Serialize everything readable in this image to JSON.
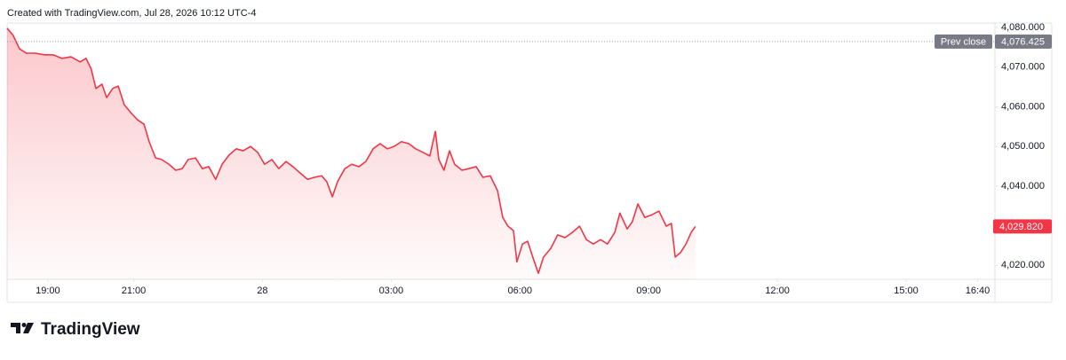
{
  "chart_data": {
    "type": "area",
    "title": "Created with TradingView.com, Jul 28, 2026 10:12 UTC-4",
    "x": [
      18.05,
      18.19,
      18.34,
      18.5,
      18.71,
      18.92,
      19.12,
      19.33,
      19.54,
      19.75,
      19.89,
      20.01,
      20.12,
      20.26,
      20.37,
      20.51,
      20.64,
      20.78,
      20.95,
      21.09,
      21.24,
      21.36,
      21.51,
      21.65,
      21.82,
      21.98,
      22.13,
      22.27,
      22.44,
      22.6,
      22.75,
      22.91,
      23.06,
      23.22,
      23.39,
      23.55,
      23.72,
      23.89,
      24.05,
      24.22,
      24.38,
      24.55,
      24.71,
      24.88,
      25.05,
      25.21,
      25.38,
      25.5,
      25.63,
      25.75,
      25.92,
      26.08,
      26.25,
      26.41,
      26.58,
      26.74,
      26.91,
      27.07,
      27.24,
      27.41,
      27.57,
      27.74,
      27.9,
      28.03,
      28.11,
      28.23,
      28.36,
      28.48,
      28.65,
      28.81,
      28.98,
      29.14,
      29.31,
      29.48,
      29.6,
      29.72,
      29.85,
      29.93,
      30.06,
      30.18,
      30.3,
      30.43,
      30.55,
      30.72,
      30.88,
      31.05,
      31.22,
      31.39,
      31.55,
      31.71,
      31.88,
      32.04,
      32.21,
      32.33,
      32.5,
      32.62,
      32.75,
      32.91,
      33.08,
      33.24,
      33.41,
      33.53,
      33.62,
      33.74,
      33.87,
      33.99,
      34.09
    ],
    "values": [
      4079.8,
      4078.0,
      4074.6,
      4073.5,
      4073.5,
      4073.1,
      4073.1,
      4072.2,
      4072.6,
      4071.3,
      4072.2,
      4069.5,
      4064.6,
      4065.7,
      4062.3,
      4064.6,
      4065.2,
      4060.5,
      4058.3,
      4056.7,
      4055.6,
      4051.2,
      4047.1,
      4046.7,
      4045.5,
      4044.0,
      4044.4,
      4046.7,
      4047.1,
      4044.4,
      4044.9,
      4041.7,
      4045.5,
      4047.8,
      4049.4,
      4048.9,
      4050.0,
      4048.5,
      4045.5,
      4046.7,
      4044.4,
      4046.2,
      4044.9,
      4043.3,
      4041.7,
      4042.2,
      4042.6,
      4041.1,
      4037.3,
      4041.1,
      4044.4,
      4045.5,
      4044.9,
      4046.2,
      4049.4,
      4050.7,
      4049.4,
      4050.0,
      4051.2,
      4050.7,
      4049.4,
      4048.5,
      4047.6,
      4053.8,
      4046.7,
      4044.0,
      4048.9,
      4045.5,
      4044.0,
      4044.4,
      4044.9,
      4042.2,
      4042.6,
      4038.8,
      4032.1,
      4029.9,
      4028.8,
      4020.9,
      4025.4,
      4026.1,
      4022.1,
      4018.0,
      4022.1,
      4024.3,
      4027.7,
      4027.0,
      4028.3,
      4029.9,
      4026.5,
      4025.4,
      4026.5,
      4025.4,
      4028.3,
      4033.2,
      4029.2,
      4031.0,
      4035.5,
      4032.1,
      4032.8,
      4033.7,
      4029.9,
      4030.6,
      4022.1,
      4023.2,
      4025.4,
      4028.3,
      4029.82
    ],
    "color": "#f23645",
    "xlim": [
      18.05,
      41.07
    ],
    "ylim": [
      4016.5,
      4081.1
    ],
    "xticks": [
      {
        "value": 19,
        "label": "19:00"
      },
      {
        "value": 21,
        "label": "21:00"
      },
      {
        "value": 24,
        "label": "28"
      },
      {
        "value": 27,
        "label": "03:00"
      },
      {
        "value": 30,
        "label": "06:00"
      },
      {
        "value": 33,
        "label": "09:00"
      },
      {
        "value": 36,
        "label": "12:00"
      },
      {
        "value": 39,
        "label": "15:00"
      },
      {
        "value": 40.667,
        "label": "16:40"
      }
    ],
    "yticks": [
      {
        "value": 4080,
        "label": "4,080.000"
      },
      {
        "value": 4070,
        "label": "4,070.000"
      },
      {
        "value": 4060,
        "label": "4,060.000"
      },
      {
        "value": 4050,
        "label": "4,050.000"
      },
      {
        "value": 4040,
        "label": "4,040.000"
      },
      {
        "value": 4020,
        "label": "4,020.000"
      }
    ],
    "prev_close": {
      "label": "Prev close",
      "value": 4076.425,
      "value_label": "4,076.425"
    },
    "last_price": {
      "value": 4029.82,
      "value_label": "4,029.820"
    },
    "grid": false
  },
  "footer": {
    "brand": "TradingView"
  }
}
